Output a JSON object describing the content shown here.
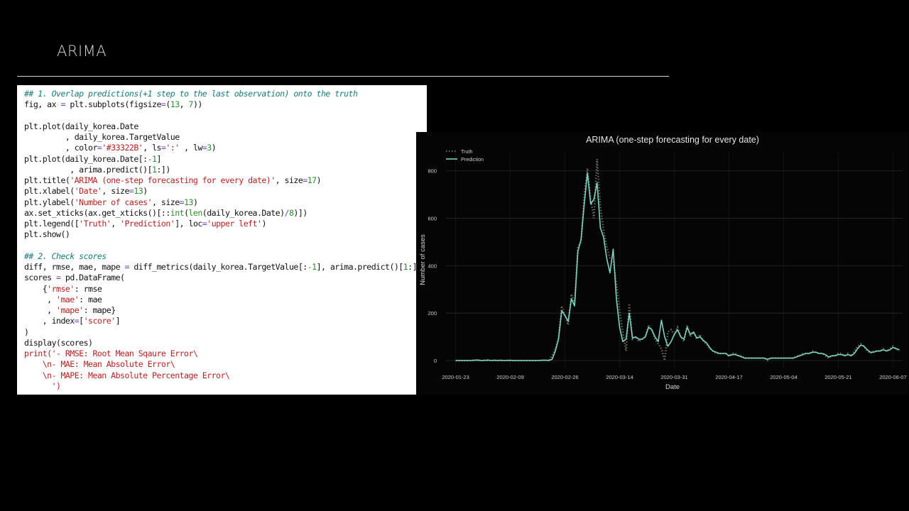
{
  "slide": {
    "title": "ARIMA"
  },
  "code": {
    "lines": [
      [
        {
          "t": "## 1. Overlap predictions(+1 step to the last observation) onto the truth",
          "c": "comment"
        }
      ],
      [
        {
          "t": "fig, ax ",
          "c": "plain"
        },
        {
          "t": "=",
          "c": "op"
        },
        {
          "t": " plt.subplots(figsize",
          "c": "plain"
        },
        {
          "t": "=",
          "c": "op"
        },
        {
          "t": "(",
          "c": "plain"
        },
        {
          "t": "13",
          "c": "num"
        },
        {
          "t": ", ",
          "c": "plain"
        },
        {
          "t": "7",
          "c": "num"
        },
        {
          "t": "))",
          "c": "plain"
        }
      ],
      [
        {
          "t": "",
          "c": "plain"
        }
      ],
      [
        {
          "t": "plt.plot(daily_korea.Date",
          "c": "plain"
        }
      ],
      [
        {
          "t": "         , daily_korea.TargetValue",
          "c": "plain"
        }
      ],
      [
        {
          "t": "         , color",
          "c": "plain"
        },
        {
          "t": "=",
          "c": "op"
        },
        {
          "t": "'#33322B'",
          "c": "str"
        },
        {
          "t": ", ls",
          "c": "plain"
        },
        {
          "t": "=",
          "c": "op"
        },
        {
          "t": "':'",
          "c": "str"
        },
        {
          "t": " , lw",
          "c": "plain"
        },
        {
          "t": "=",
          "c": "op"
        },
        {
          "t": "3",
          "c": "num"
        },
        {
          "t": ")",
          "c": "plain"
        }
      ],
      [
        {
          "t": "plt.plot(daily_korea.Date[:",
          "c": "plain"
        },
        {
          "t": "-1",
          "c": "num"
        },
        {
          "t": "]",
          "c": "plain"
        }
      ],
      [
        {
          "t": "          , arima.predict()[",
          "c": "plain"
        },
        {
          "t": "1",
          "c": "num"
        },
        {
          "t": ":])",
          "c": "plain"
        }
      ],
      [
        {
          "t": "plt.title(",
          "c": "plain"
        },
        {
          "t": "'ARIMA (one-step forecasting for every date)'",
          "c": "str"
        },
        {
          "t": ", size",
          "c": "plain"
        },
        {
          "t": "=",
          "c": "op"
        },
        {
          "t": "17",
          "c": "num"
        },
        {
          "t": ")",
          "c": "plain"
        }
      ],
      [
        {
          "t": "plt.xlabel(",
          "c": "plain"
        },
        {
          "t": "'Date'",
          "c": "str"
        },
        {
          "t": ", size",
          "c": "plain"
        },
        {
          "t": "=",
          "c": "op"
        },
        {
          "t": "13",
          "c": "num"
        },
        {
          "t": ")",
          "c": "plain"
        }
      ],
      [
        {
          "t": "plt.ylabel(",
          "c": "plain"
        },
        {
          "t": "'Number of cases'",
          "c": "str"
        },
        {
          "t": ", size",
          "c": "plain"
        },
        {
          "t": "=",
          "c": "op"
        },
        {
          "t": "13",
          "c": "num"
        },
        {
          "t": ")",
          "c": "plain"
        }
      ],
      [
        {
          "t": "ax.set_xticks(ax.get_xticks()[::",
          "c": "plain"
        },
        {
          "t": "int",
          "c": "num"
        },
        {
          "t": "(",
          "c": "plain"
        },
        {
          "t": "len",
          "c": "num"
        },
        {
          "t": "(daily_korea.Date)",
          "c": "plain"
        },
        {
          "t": "/",
          "c": "op"
        },
        {
          "t": "8",
          "c": "num"
        },
        {
          "t": ")])",
          "c": "plain"
        }
      ],
      [
        {
          "t": "plt.legend([",
          "c": "plain"
        },
        {
          "t": "'Truth'",
          "c": "str"
        },
        {
          "t": ", ",
          "c": "plain"
        },
        {
          "t": "'Prediction'",
          "c": "str"
        },
        {
          "t": "], loc",
          "c": "plain"
        },
        {
          "t": "=",
          "c": "op"
        },
        {
          "t": "'upper left'",
          "c": "str"
        },
        {
          "t": ")",
          "c": "plain"
        }
      ],
      [
        {
          "t": "plt.show()",
          "c": "plain"
        }
      ],
      [
        {
          "t": "",
          "c": "plain"
        }
      ],
      [
        {
          "t": "## 2. Check scores",
          "c": "comment"
        }
      ],
      [
        {
          "t": "diff, rmse, mae, mape ",
          "c": "plain"
        },
        {
          "t": "=",
          "c": "op"
        },
        {
          "t": " diff_metrics(daily_korea.TargetValue[:",
          "c": "plain"
        },
        {
          "t": "-1",
          "c": "num"
        },
        {
          "t": "], arima.predict()[",
          "c": "plain"
        },
        {
          "t": "1",
          "c": "num"
        },
        {
          "t": ":])",
          "c": "plain"
        }
      ],
      [
        {
          "t": "scores ",
          "c": "plain"
        },
        {
          "t": "=",
          "c": "op"
        },
        {
          "t": " pd.DataFrame(",
          "c": "plain"
        }
      ],
      [
        {
          "t": "    {",
          "c": "plain"
        },
        {
          "t": "'rmse'",
          "c": "str"
        },
        {
          "t": ": rmse",
          "c": "plain"
        }
      ],
      [
        {
          "t": "     , ",
          "c": "plain"
        },
        {
          "t": "'mae'",
          "c": "str"
        },
        {
          "t": ": mae",
          "c": "plain"
        }
      ],
      [
        {
          "t": "     , ",
          "c": "plain"
        },
        {
          "t": "'mape'",
          "c": "str"
        },
        {
          "t": ": mape}",
          "c": "plain"
        }
      ],
      [
        {
          "t": "    , index",
          "c": "plain"
        },
        {
          "t": "=",
          "c": "op"
        },
        {
          "t": "[",
          "c": "plain"
        },
        {
          "t": "'score'",
          "c": "str"
        },
        {
          "t": "]",
          "c": "plain"
        }
      ],
      [
        {
          "t": ")",
          "c": "plain"
        }
      ],
      [
        {
          "t": "display(scores)",
          "c": "plain"
        }
      ],
      [
        {
          "t": "print",
          "c": "kw"
        },
        {
          "t": "('- RMSE: Root Mean Sqaure Error\\",
          "c": "str"
        }
      ],
      [
        {
          "t": "    \\n- MAE: Mean Absolute Error\\",
          "c": "str"
        }
      ],
      [
        {
          "t": "    \\n- MAPE: Mean Absolute Percentage Error\\",
          "c": "str"
        }
      ],
      [
        {
          "t": "      ')",
          "c": "str"
        }
      ]
    ]
  },
  "chart_data": {
    "type": "line",
    "title": "ARIMA (one-step forecasting for every date)",
    "xlabel": "Date",
    "ylabel": "Number of cases",
    "x_tick_labels": [
      "2020-01-23",
      "2020-02-09",
      "2020-02-26",
      "2020-03-14",
      "2020-03-31",
      "2020-04-17",
      "2020-05-04",
      "2020-05-21",
      "2020-06-07"
    ],
    "y_ticks": [
      0,
      200,
      400,
      600,
      800
    ],
    "ylim": [
      -30,
      880
    ],
    "xlim": [
      -3,
      139
    ],
    "grid": true,
    "legend": "upper left",
    "background": "#050505",
    "series": [
      {
        "name": "Truth",
        "color": "#33322B",
        "style": "dotted",
        "values": [
          0,
          0,
          0,
          0,
          0,
          1,
          2,
          0,
          0,
          2,
          0,
          1,
          0,
          1,
          0,
          0,
          1,
          0,
          0,
          0,
          0,
          0,
          0,
          0,
          0,
          0,
          1,
          1,
          0,
          2,
          20,
          50,
          100,
          230,
          190,
          150,
          280,
          240,
          480,
          500,
          700,
          810,
          680,
          600,
          850,
          650,
          550,
          480,
          430,
          420,
          330,
          210,
          120,
          40,
          240,
          90,
          100,
          80,
          90,
          100,
          150,
          130,
          90,
          70,
          50,
          0,
          120,
          130,
          110,
          140,
          100,
          80,
          150,
          100,
          120,
          90,
          110,
          80,
          70,
          50,
          40,
          30,
          30,
          30,
          30,
          20,
          30,
          30,
          20,
          20,
          10,
          10,
          10,
          10,
          10,
          10,
          10,
          0,
          10,
          10,
          10,
          10,
          10,
          10,
          10,
          10,
          20,
          20,
          30,
          30,
          30,
          40,
          35,
          30,
          30,
          20,
          10,
          20,
          20,
          30,
          30,
          20,
          30,
          20,
          40,
          60,
          70,
          60,
          40,
          30,
          40,
          40,
          40,
          50,
          40,
          50,
          60,
          50,
          40
        ]
      },
      {
        "name": "Prediction",
        "color": "#7ed2c4",
        "style": "solid",
        "values": [
          0,
          0,
          0,
          0,
          0,
          0,
          1,
          2,
          0,
          0,
          2,
          0,
          1,
          0,
          1,
          0,
          0,
          1,
          0,
          0,
          0,
          0,
          0,
          0,
          0,
          0,
          0,
          1,
          1,
          0,
          5,
          40,
          90,
          210,
          190,
          165,
          260,
          230,
          460,
          510,
          660,
          790,
          660,
          680,
          750,
          560,
          520,
          430,
          370,
          470,
          260,
          140,
          80,
          90,
          200,
          95,
          100,
          90,
          90,
          100,
          140,
          130,
          100,
          80,
          170,
          100,
          60,
          80,
          110,
          130,
          100,
          90,
          140,
          110,
          120,
          95,
          100,
          85,
          75,
          55,
          40,
          35,
          30,
          30,
          30,
          20,
          25,
          25,
          20,
          15,
          10,
          10,
          10,
          10,
          10,
          10,
          10,
          5,
          10,
          10,
          10,
          10,
          10,
          10,
          10,
          10,
          15,
          20,
          25,
          30,
          30,
          35,
          35,
          30,
          30,
          25,
          15,
          20,
          20,
          25,
          25,
          20,
          25,
          20,
          30,
          50,
          65,
          60,
          45,
          35,
          35,
          40,
          40,
          45,
          40,
          45,
          55,
          50,
          45
        ]
      }
    ]
  }
}
